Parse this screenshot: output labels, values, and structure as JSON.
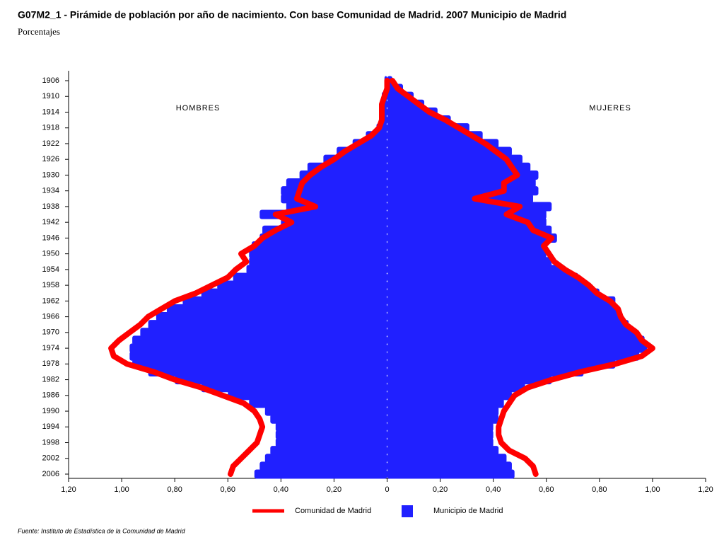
{
  "chart_data": {
    "type": "pyramid",
    "title": "G07M2_1 - Pirámide de población por año de nacimiento. Con base Comunidad de Madrid.  2007 Municipio de Madrid",
    "subtitle": "Porcentajes",
    "left_label": "HOMBRES",
    "right_label": "MUJERES",
    "source": "Fuente: Instituto de Estadística de la Comunidad de Madrid",
    "categories": [
      "1906",
      null,
      "1910",
      null,
      "1914",
      null,
      "1918",
      null,
      "1922",
      null,
      "1926",
      null,
      "1930",
      null,
      "1934",
      null,
      "1938",
      null,
      "1942",
      null,
      "1946",
      null,
      "1950",
      null,
      "1954",
      null,
      "1958",
      null,
      "1962",
      null,
      "1966",
      null,
      "1970",
      null,
      "1974",
      null,
      "1978",
      null,
      "1982",
      null,
      "1986",
      null,
      "1990",
      null,
      "1994",
      null,
      "1998",
      null,
      "2002",
      null,
      "2006"
    ],
    "xlim": [
      -1.2,
      1.2
    ],
    "xticks": [
      {
        "value": -1.2,
        "label": "1,20"
      },
      {
        "value": -1.0,
        "label": "1,00"
      },
      {
        "value": -0.8,
        "label": "0,80"
      },
      {
        "value": -0.6,
        "label": "0,60"
      },
      {
        "value": -0.4,
        "label": "0,40"
      },
      {
        "value": -0.2,
        "label": "0,20"
      },
      0,
      {
        "value": 0.2,
        "label": "0,20"
      },
      {
        "value": 0.4,
        "label": "0,40"
      },
      {
        "value": 0.6,
        "label": "0,60"
      },
      {
        "value": 0.8,
        "label": "0,80"
      },
      {
        "value": 1.0,
        "label": "1,00"
      },
      {
        "value": 1.2,
        "label": "1,20"
      }
    ],
    "series": [
      {
        "name": "Municipio de Madrid",
        "color": "#2020ff",
        "style": "bar",
        "men": [
          -0.01,
          -0.01,
          -0.02,
          -0.02,
          -0.02,
          -0.03,
          -0.04,
          -0.08,
          -0.13,
          -0.19,
          -0.24,
          -0.3,
          -0.33,
          -0.38,
          -0.4,
          -0.4,
          -0.38,
          -0.48,
          -0.4,
          -0.47,
          -0.48,
          -0.51,
          -0.52,
          -0.52,
          -0.53,
          -0.58,
          -0.64,
          -0.7,
          -0.77,
          -0.83,
          -0.87,
          -0.9,
          -0.93,
          -0.96,
          -0.97,
          -0.97,
          -0.96,
          -0.9,
          -0.8,
          -0.7,
          -0.6,
          -0.52,
          -0.46,
          -0.44,
          -0.42,
          -0.42,
          -0.42,
          -0.44,
          -0.46,
          -0.48,
          -0.5
        ],
        "women": [
          0.02,
          0.06,
          0.1,
          0.14,
          0.19,
          0.24,
          0.31,
          0.36,
          0.42,
          0.47,
          0.51,
          0.54,
          0.57,
          0.56,
          0.57,
          0.55,
          0.62,
          0.6,
          0.6,
          0.62,
          0.64,
          0.6,
          0.6,
          0.62,
          0.67,
          0.72,
          0.76,
          0.8,
          0.86,
          0.87,
          0.88,
          0.91,
          0.94,
          0.97,
          0.98,
          0.95,
          0.86,
          0.74,
          0.62,
          0.52,
          0.47,
          0.44,
          0.42,
          0.42,
          0.4,
          0.4,
          0.4,
          0.42,
          0.45,
          0.47,
          0.48
        ]
      },
      {
        "name": "Comunidad de Madrid",
        "color": "#ff0000",
        "style": "line",
        "men": [
          0.0,
          0.0,
          -0.01,
          -0.02,
          -0.02,
          -0.02,
          -0.03,
          -0.06,
          -0.11,
          -0.16,
          -0.2,
          -0.25,
          -0.29,
          -0.32,
          -0.33,
          -0.34,
          -0.27,
          -0.42,
          -0.36,
          -0.42,
          -0.47,
          -0.5,
          -0.55,
          -0.53,
          -0.57,
          -0.6,
          -0.66,
          -0.72,
          -0.8,
          -0.85,
          -0.9,
          -0.93,
          -0.97,
          -1.01,
          -1.04,
          -1.03,
          -0.98,
          -0.88,
          -0.8,
          -0.7,
          -0.62,
          -0.54,
          -0.5,
          -0.48,
          -0.47,
          -0.48,
          -0.49,
          -0.52,
          -0.55,
          -0.58,
          -0.59
        ],
        "women": [
          0.02,
          0.04,
          0.08,
          0.12,
          0.16,
          0.22,
          0.27,
          0.32,
          0.37,
          0.41,
          0.45,
          0.47,
          0.49,
          0.44,
          0.44,
          0.33,
          0.5,
          0.45,
          0.53,
          0.55,
          0.62,
          0.59,
          0.61,
          0.63,
          0.67,
          0.72,
          0.76,
          0.79,
          0.84,
          0.87,
          0.88,
          0.9,
          0.94,
          0.96,
          1.0,
          0.96,
          0.86,
          0.73,
          0.62,
          0.53,
          0.48,
          0.46,
          0.44,
          0.43,
          0.42,
          0.42,
          0.43,
          0.46,
          0.52,
          0.55,
          0.56
        ]
      }
    ]
  }
}
